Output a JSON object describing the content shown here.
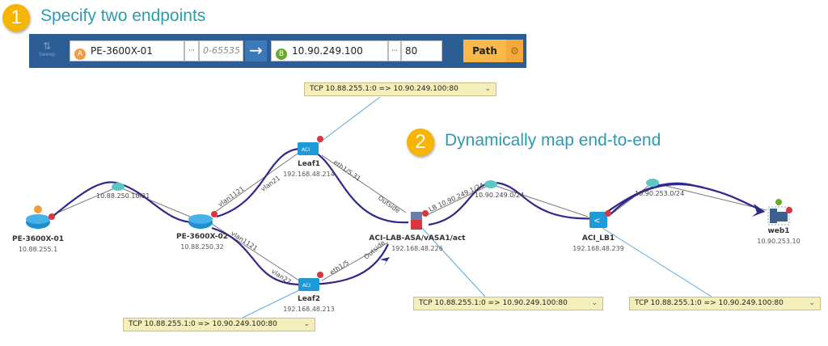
{
  "steps": [
    {
      "number": "1",
      "text": "Specify two endpoints"
    },
    {
      "number": "2",
      "text": "Dynamically map end-to-end"
    }
  ],
  "toolbar": {
    "sweep_label": "Sweep",
    "source": {
      "badge": "A",
      "value": "PE-3600X-01",
      "more": "···",
      "port_placeholder": "0-65535"
    },
    "arrow": "→",
    "destination": {
      "badge": "B",
      "value": "10.90.249.100",
      "more": "···",
      "port": "80"
    },
    "path_label": "Path",
    "colors": {
      "bar": "#2c5d94",
      "path_button": "#f9b84a",
      "badge_a": "#f39c3d",
      "badge_b": "#6aaa2a"
    }
  },
  "tooltips": [
    "TCP 10.88.255.1:0 => 10.90.249.100:80",
    "TCP 10.88.255.1:0 => 10.90.249.100:80",
    "TCP 10.88.255.1:0 => 10.90.249.100:80",
    "TCP 10.88.255.1:0 => 10.90.249.100:80"
  ],
  "nodes": [
    {
      "name": "PE-3600X-01",
      "ip": "10.88.255.1",
      "badge": "A"
    },
    {
      "name": "PE-3600X-02",
      "ip": "10.88.250.32"
    },
    {
      "name": "Leaf1",
      "ip": "192.168.48.214"
    },
    {
      "name": "Leaf2",
      "ip": "192.168.48.213"
    },
    {
      "name": "ACI-LAB-ASA/vASA1/act",
      "ip": "192.168.48.226"
    },
    {
      "name": "ACI_LB1",
      "ip": "192.168.48.239"
    },
    {
      "name": "web1",
      "ip": "10.90.253.10",
      "badge": "B"
    }
  ],
  "links": [
    "10.88.250.10/31",
    "vlan1121",
    "vlan21",
    "vlan1121",
    "vlan27",
    "eth1/5.31",
    "Outside",
    "eth1/5",
    "Outside",
    "LB 10.90.249.1/24",
    "10.90.249.0/24",
    "10.90.253.0/24"
  ],
  "path_color": "#2e2a8c"
}
